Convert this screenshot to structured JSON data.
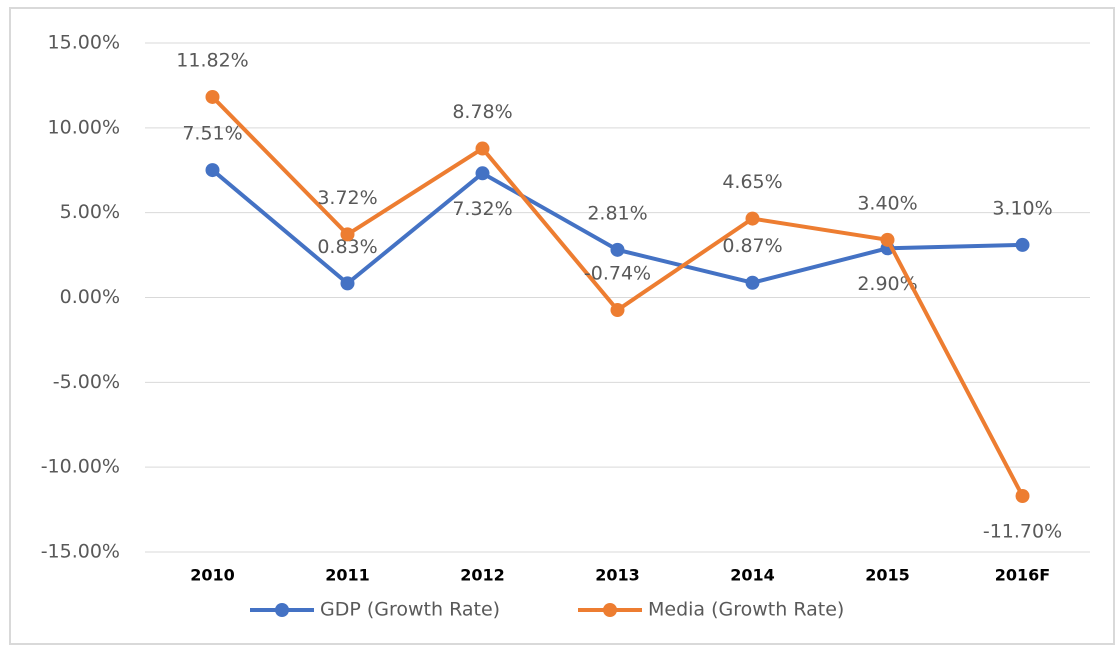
{
  "chart_data": {
    "type": "line",
    "categories": [
      "2010",
      "2011",
      "2012",
      "2013",
      "2014",
      "2015",
      "2016F"
    ],
    "series": [
      {
        "name": "GDP (Growth Rate)",
        "color": "#4472c4",
        "values": [
          7.51,
          0.83,
          7.32,
          2.81,
          0.87,
          2.9,
          3.1
        ],
        "value_labels": [
          "7.51%",
          "0.83%",
          "7.32%",
          "2.81%",
          "0.87%",
          "2.90%",
          "3.10%"
        ]
      },
      {
        "name": "Media (Growth Rate)",
        "color": "#ed7d31",
        "values": [
          11.82,
          3.72,
          8.78,
          -0.74,
          4.65,
          3.4,
          -11.7
        ],
        "value_labels": [
          "11.82%",
          "3.72%",
          "8.78%",
          "-0.74%",
          "4.65%",
          "3.40%",
          "-11.70%"
        ]
      }
    ],
    "ylim": [
      -15,
      15
    ],
    "yticks": [
      {
        "value": -15,
        "label": "-15.00%"
      },
      {
        "value": -10,
        "label": "-10.00%"
      },
      {
        "value": -5,
        "label": "-5.00%"
      },
      {
        "value": 0,
        "label": "0.00%"
      },
      {
        "value": 5,
        "label": "5.00%"
      },
      {
        "value": 10,
        "label": "10.00%"
      },
      {
        "value": 15,
        "label": "15.00%"
      }
    ],
    "grid": true,
    "legend": "bottom"
  }
}
